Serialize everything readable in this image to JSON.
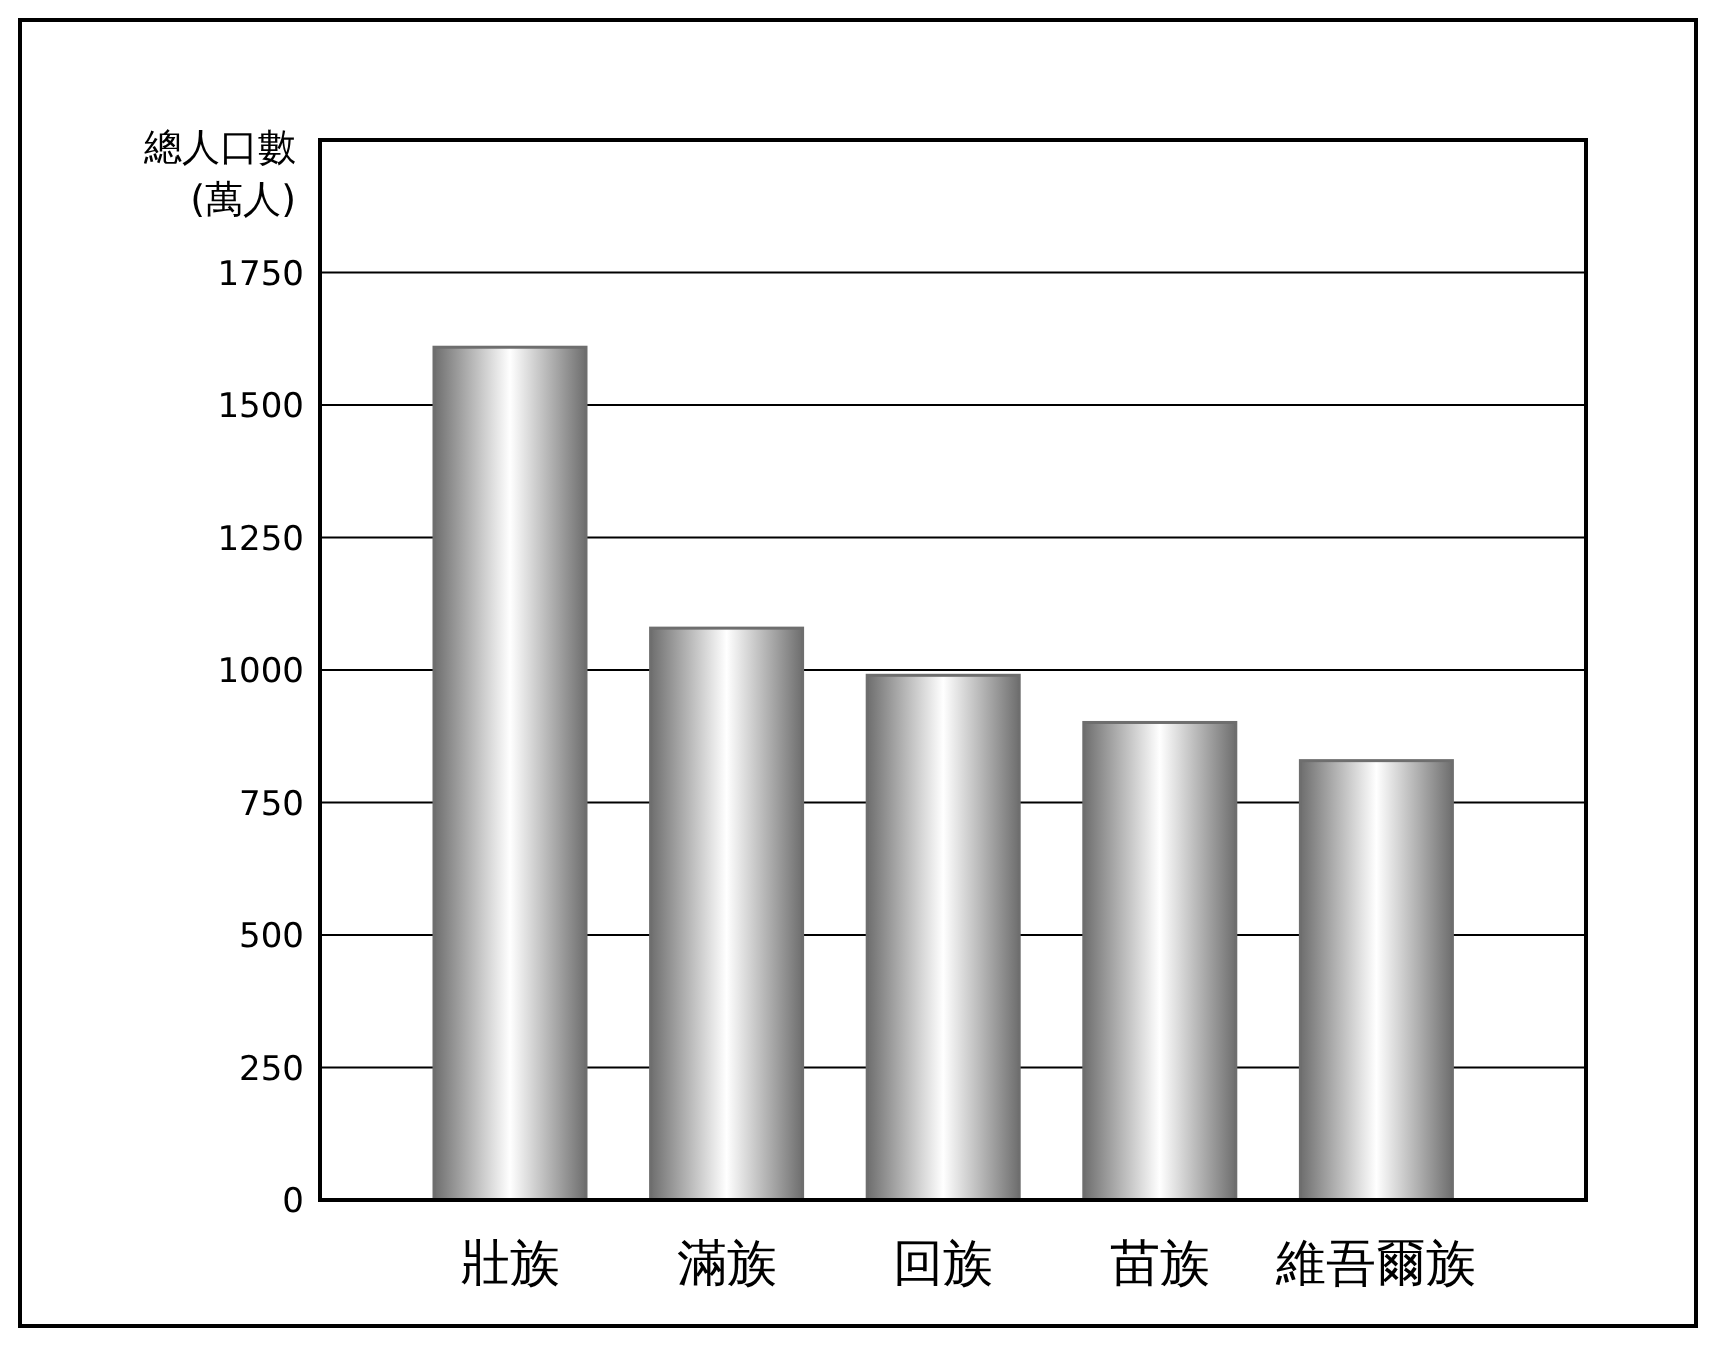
{
  "chart_data": {
    "type": "bar",
    "ylabel": "總人口數\n(萬人)",
    "categories": [
      "壯族",
      "滿族",
      "回族",
      "苗族",
      "維吾爾族"
    ],
    "values": [
      1609,
      1079,
      990,
      901,
      829
    ],
    "color": "#6e6e6e",
    "ylim": [
      0,
      2000
    ],
    "yticks": [
      0,
      250,
      500,
      750,
      1000,
      1250,
      1500,
      1750
    ],
    "grid": "y"
  }
}
